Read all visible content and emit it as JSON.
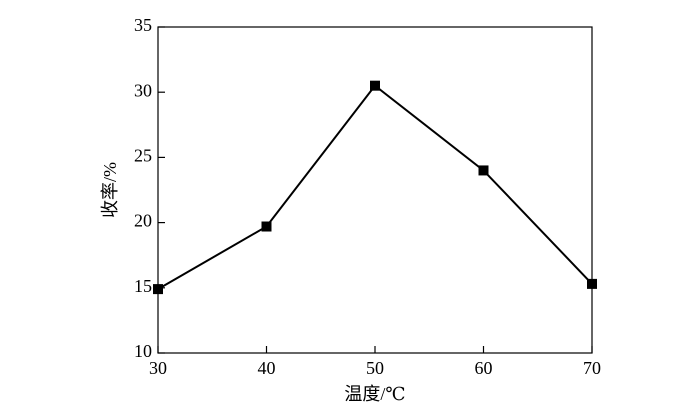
{
  "chart_data": {
    "type": "line",
    "x_label": "温度/℃",
    "y_label": "收率/%",
    "x": [
      30,
      40,
      50,
      60,
      70
    ],
    "series": [
      {
        "color": "#000000",
        "values": [
          14.9,
          19.7,
          30.5,
          24.0,
          15.3
        ]
      }
    ],
    "xlim": [
      30,
      70
    ],
    "xticks": [
      30,
      40,
      50,
      60,
      70
    ],
    "ylim": [
      10,
      35
    ],
    "yticks": [
      10,
      15,
      20,
      25,
      30,
      35
    ]
  }
}
